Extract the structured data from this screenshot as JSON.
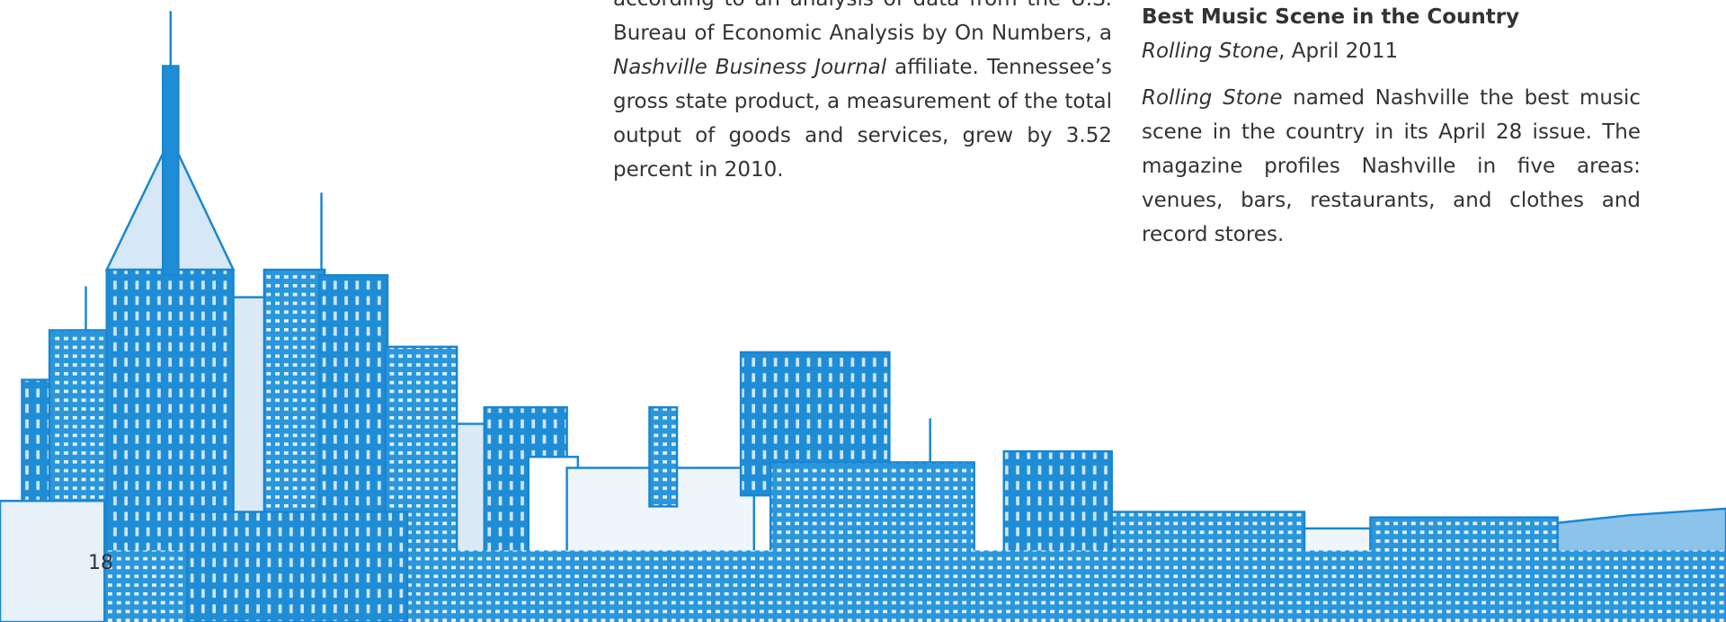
{
  "left_column": {
    "segments": [
      {
        "text": "according to an analysis of data from the U.S. Bureau of Economic Analysis by On Numbers, a ",
        "italic": false
      },
      {
        "text": "Nashville Business Journal",
        "italic": true
      },
      {
        "text": " affiliate. Tennessee’s gross state product, a measurement of the total output of goods and services, grew by 3.52 percent in 2010.",
        "italic": false
      }
    ]
  },
  "right_column": {
    "heading": "Best Music Scene in the Country",
    "source": [
      {
        "text": "Rolling Stone",
        "italic": true
      },
      {
        "text": ", April 2011",
        "italic": false
      }
    ],
    "body": [
      {
        "text": "Rolling Stone",
        "italic": true
      },
      {
        "text": " named Nashville the best music scene in the country in its April 28 issue. The magazine profiles Nashville in five areas: venues, bars, restaurants, and clothes and record stores.",
        "italic": false
      }
    ]
  },
  "page_number": "18"
}
